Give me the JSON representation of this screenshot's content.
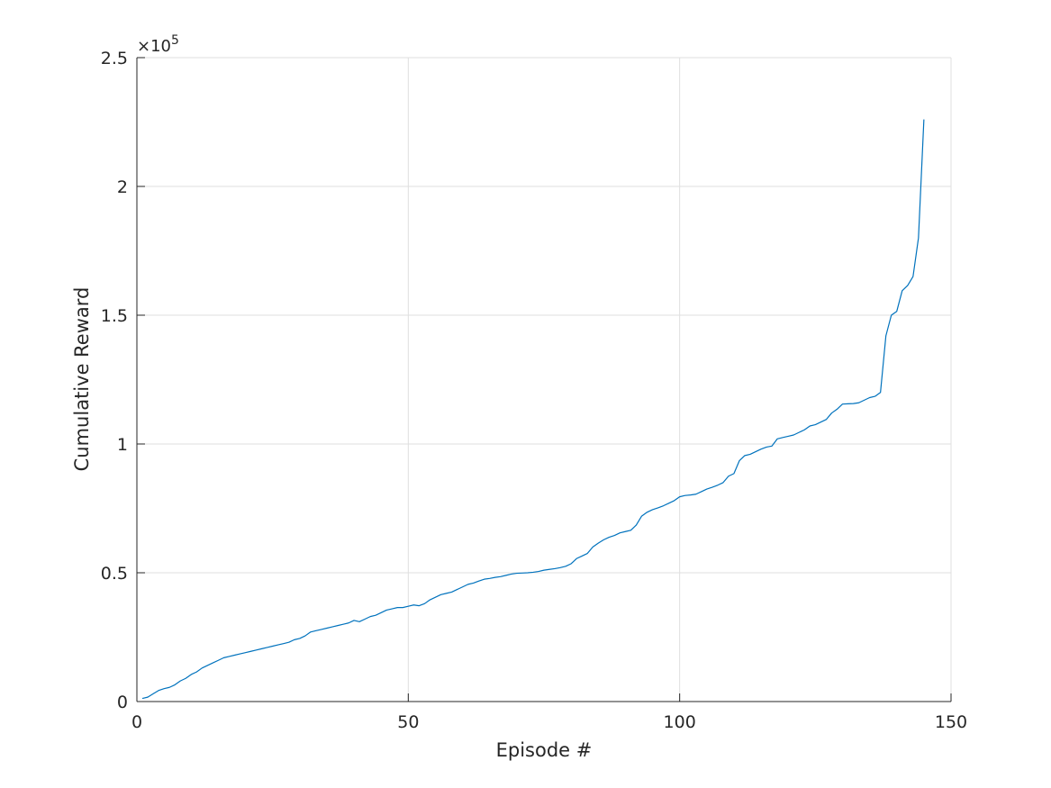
{
  "chart_data": {
    "type": "line",
    "title": "",
    "xlabel": "Episode #",
    "ylabel": "Cumulative Reward",
    "xlim": [
      0,
      150
    ],
    "ylim": [
      0,
      250000
    ],
    "xticks": [
      0,
      50,
      100,
      150
    ],
    "xtick_labels": [
      "0",
      "50",
      "100",
      "150"
    ],
    "yticks": [
      0,
      50000,
      100000,
      150000,
      200000,
      250000
    ],
    "ytick_labels": [
      "0",
      "0.5",
      "1",
      "1.5",
      "2",
      "2.5"
    ],
    "y_exponent_label": "×10",
    "y_exponent_power": "5",
    "grid": true,
    "colors": {
      "series": "#0072BD",
      "axis": "#262626",
      "grid": "#dfdfdf"
    },
    "series": [
      {
        "points": [
          [
            1,
            1200
          ],
          [
            2,
            1700
          ],
          [
            3,
            3000
          ],
          [
            4,
            4300
          ],
          [
            5,
            5000
          ],
          [
            6,
            5500
          ],
          [
            7,
            6500
          ],
          [
            8,
            8000
          ],
          [
            9,
            9000
          ],
          [
            10,
            10500
          ],
          [
            11,
            11500
          ],
          [
            12,
            13000
          ],
          [
            13,
            14000
          ],
          [
            14,
            15000
          ],
          [
            15,
            16000
          ],
          [
            16,
            17000
          ],
          [
            17,
            17500
          ],
          [
            18,
            18000
          ],
          [
            19,
            18500
          ],
          [
            20,
            19000
          ],
          [
            21,
            19500
          ],
          [
            22,
            20000
          ],
          [
            23,
            20500
          ],
          [
            24,
            21000
          ],
          [
            25,
            21500
          ],
          [
            26,
            22000
          ],
          [
            27,
            22500
          ],
          [
            28,
            23000
          ],
          [
            29,
            24000
          ],
          [
            30,
            24500
          ],
          [
            31,
            25500
          ],
          [
            32,
            27000
          ],
          [
            33,
            27500
          ],
          [
            34,
            28000
          ],
          [
            35,
            28500
          ],
          [
            36,
            29000
          ],
          [
            37,
            29500
          ],
          [
            38,
            30000
          ],
          [
            39,
            30500
          ],
          [
            40,
            31500
          ],
          [
            41,
            31000
          ],
          [
            42,
            32000
          ],
          [
            43,
            33000
          ],
          [
            44,
            33500
          ],
          [
            45,
            34500
          ],
          [
            46,
            35500
          ],
          [
            47,
            36000
          ],
          [
            48,
            36500
          ],
          [
            49,
            36500
          ],
          [
            50,
            37000
          ],
          [
            51,
            37500
          ],
          [
            52,
            37200
          ],
          [
            53,
            38000
          ],
          [
            54,
            39500
          ],
          [
            55,
            40500
          ],
          [
            56,
            41500
          ],
          [
            57,
            42000
          ],
          [
            58,
            42500
          ],
          [
            59,
            43500
          ],
          [
            60,
            44500
          ],
          [
            61,
            45500
          ],
          [
            62,
            46000
          ],
          [
            63,
            46800
          ],
          [
            64,
            47500
          ],
          [
            65,
            47800
          ],
          [
            66,
            48200
          ],
          [
            67,
            48500
          ],
          [
            68,
            49000
          ],
          [
            69,
            49500
          ],
          [
            70,
            49800
          ],
          [
            71,
            49900
          ],
          [
            72,
            50000
          ],
          [
            73,
            50200
          ],
          [
            74,
            50500
          ],
          [
            75,
            51000
          ],
          [
            76,
            51300
          ],
          [
            77,
            51600
          ],
          [
            78,
            52000
          ],
          [
            79,
            52500
          ],
          [
            80,
            53500
          ],
          [
            81,
            55500
          ],
          [
            82,
            56500
          ],
          [
            83,
            57500
          ],
          [
            84,
            60000
          ],
          [
            85,
            61500
          ],
          [
            86,
            62800
          ],
          [
            87,
            63800
          ],
          [
            88,
            64500
          ],
          [
            89,
            65500
          ],
          [
            90,
            66000
          ],
          [
            91,
            66500
          ],
          [
            92,
            68500
          ],
          [
            93,
            72000
          ],
          [
            94,
            73500
          ],
          [
            95,
            74500
          ],
          [
            96,
            75200
          ],
          [
            97,
            76000
          ],
          [
            98,
            77000
          ],
          [
            99,
            78000
          ],
          [
            100,
            79500
          ],
          [
            101,
            80000
          ],
          [
            102,
            80200
          ],
          [
            103,
            80500
          ],
          [
            104,
            81500
          ],
          [
            105,
            82500
          ],
          [
            106,
            83200
          ],
          [
            107,
            84000
          ],
          [
            108,
            85000
          ],
          [
            109,
            87500
          ],
          [
            110,
            88500
          ],
          [
            111,
            93500
          ],
          [
            112,
            95500
          ],
          [
            113,
            96000
          ],
          [
            114,
            97000
          ],
          [
            115,
            98000
          ],
          [
            116,
            98800
          ],
          [
            117,
            99200
          ],
          [
            118,
            102000
          ],
          [
            119,
            102500
          ],
          [
            120,
            103000
          ],
          [
            121,
            103500
          ],
          [
            122,
            104500
          ],
          [
            123,
            105500
          ],
          [
            124,
            107000
          ],
          [
            125,
            107500
          ],
          [
            126,
            108500
          ],
          [
            127,
            109500
          ],
          [
            128,
            112000
          ],
          [
            129,
            113500
          ],
          [
            130,
            115500
          ],
          [
            131,
            115600
          ],
          [
            132,
            115700
          ],
          [
            133,
            116000
          ],
          [
            134,
            117000
          ],
          [
            135,
            118000
          ],
          [
            136,
            118500
          ],
          [
            137,
            120000
          ],
          [
            138,
            142000
          ],
          [
            139,
            150000
          ],
          [
            140,
            151500
          ],
          [
            141,
            159500
          ],
          [
            142,
            161500
          ],
          [
            143,
            165000
          ],
          [
            144,
            180000
          ],
          [
            145,
            226000
          ]
        ]
      }
    ]
  }
}
